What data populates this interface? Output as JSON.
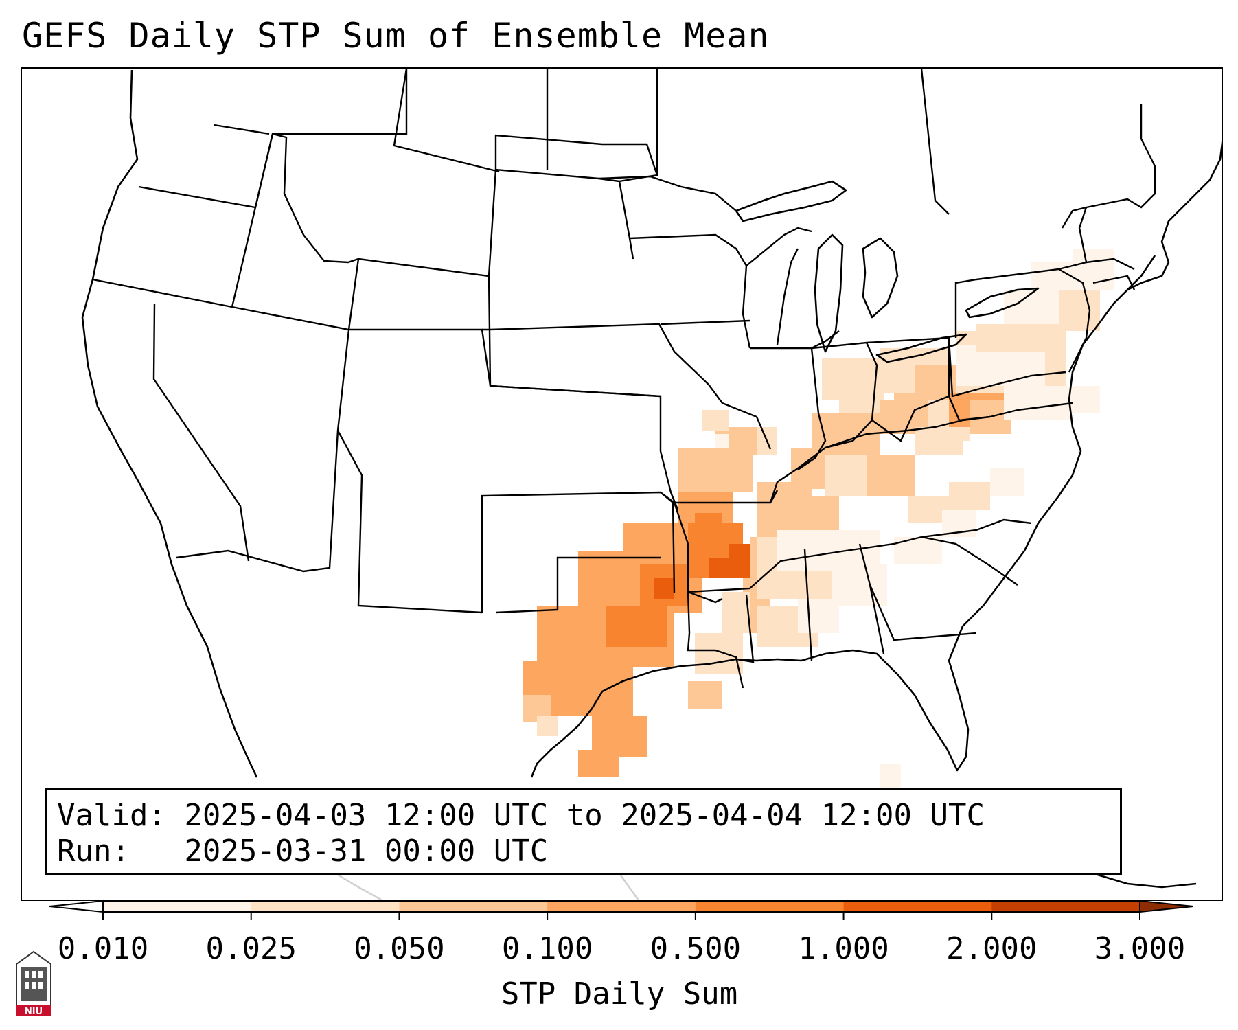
{
  "title": "GEFS Daily STP Sum of Ensemble Mean",
  "info": {
    "valid_line": "Valid: 2025-04-03 12:00 UTC to 2025-04-04 12:00 UTC",
    "run_line": "Run:   2025-03-31 00:00 UTC"
  },
  "colorbar": {
    "title": "STP Daily Sum",
    "ticks": [
      "0.010",
      "0.025",
      "0.050",
      "0.100",
      "0.500",
      "1.000",
      "2.000",
      "3.000"
    ],
    "colors": [
      "#fff4ea",
      "#fee2c6",
      "#fdc796",
      "#fca65f",
      "#f8842f",
      "#ea5d0c",
      "#c63f02",
      "#8c2d04"
    ],
    "under_color": "#ffffff",
    "over_color": "#8c2d04"
  },
  "logo": {
    "text": "NIU",
    "color": "#c8102e"
  }
}
